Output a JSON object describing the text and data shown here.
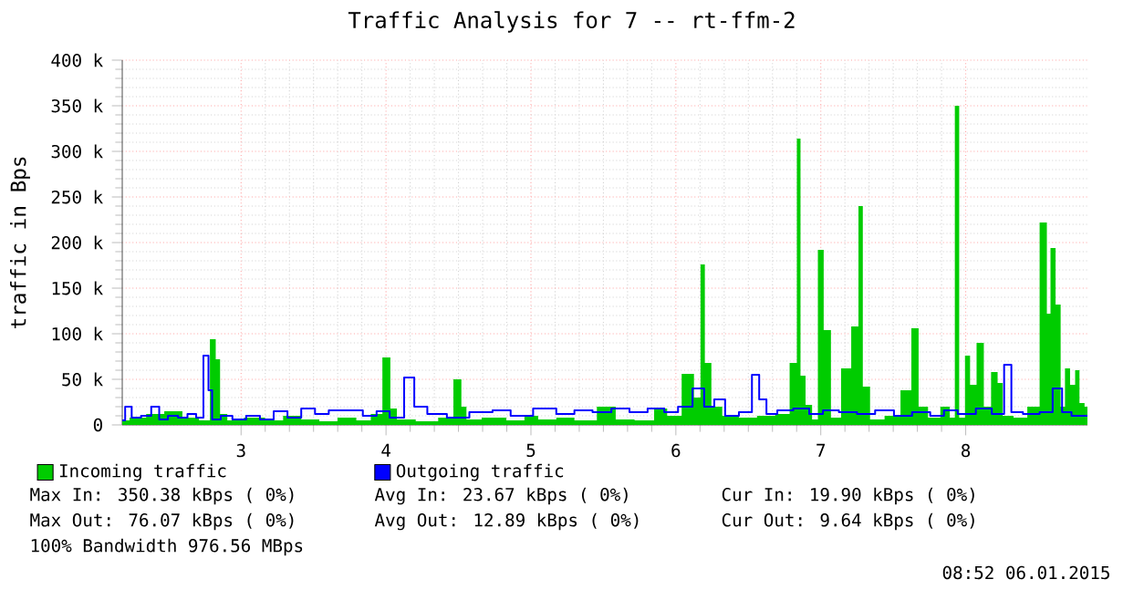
{
  "chart_data": {
    "type": "area",
    "title": "Traffic Analysis for 7 -- rt-ffm-2",
    "ylabel": "traffic in Bps",
    "xlim": [
      2.18,
      8.84
    ],
    "xticks": [
      3,
      4,
      5,
      6,
      7,
      8
    ],
    "ylim": [
      0,
      400000
    ],
    "yticks": [
      0,
      {
        "value": 50000,
        "label": "50 k"
      },
      {
        "value": 100000,
        "label": "100 k"
      },
      {
        "value": 150000,
        "label": "150 k"
      },
      {
        "value": 200000,
        "label": "200 k"
      },
      {
        "value": 250000,
        "label": "250 k"
      },
      {
        "value": 300000,
        "label": "300 k"
      },
      {
        "value": 350000,
        "label": "350 k"
      },
      {
        "value": 400000,
        "label": "400 k"
      }
    ],
    "grid": true,
    "legend": "bottom",
    "series": [
      {
        "name": "Incoming traffic",
        "type": "area",
        "color": "#00cc00",
        "x": [
          2.18,
          2.28,
          2.41,
          2.53,
          2.66,
          2.76,
          2.81,
          2.84,
          2.87,
          2.94,
          3.1,
          3.23,
          3.35,
          3.48,
          3.6,
          3.73,
          3.86,
          3.93,
          4.02,
          4.04,
          4.11,
          4.3,
          4.42,
          4.51,
          4.53,
          4.58,
          4.74,
          4.92,
          4.99,
          5.11,
          5.24,
          5.36,
          5.55,
          5.62,
          5.81,
          5.89,
          5.99,
          6.09,
          6.16,
          6.18,
          6.22,
          6.27,
          6.37,
          6.5,
          6.62,
          6.75,
          6.82,
          6.85,
          6.87,
          6.92,
          6.96,
          7.0,
          7.04,
          7.1,
          7.18,
          7.24,
          7.28,
          7.3,
          7.38,
          7.5,
          7.6,
          7.65,
          7.7,
          7.78,
          7.87,
          7.91,
          7.94,
          7.97,
          8.02,
          8.04,
          8.11,
          8.14,
          8.21,
          8.23,
          8.28,
          8.38,
          8.47,
          8.55,
          8.57,
          8.6,
          8.64,
          8.67,
          8.7,
          8.74,
          8.77,
          8.8,
          8.84
        ],
        "values": [
          5000,
          8000,
          12000,
          15000,
          8000,
          5000,
          94000,
          72000,
          12000,
          5000,
          8000,
          5000,
          10000,
          6000,
          4000,
          8000,
          5000,
          12000,
          74000,
          18000,
          6000,
          4000,
          8000,
          50000,
          20000,
          6000,
          8000,
          5000,
          10000,
          6000,
          8000,
          5000,
          20000,
          6000,
          5000,
          18000,
          10000,
          56000,
          30000,
          176000,
          68000,
          20000,
          10000,
          8000,
          10000,
          12000,
          68000,
          314000,
          54000,
          22000,
          6000,
          192000,
          104000,
          8000,
          62000,
          108000,
          240000,
          42000,
          6000,
          10000,
          38000,
          106000,
          20000,
          8000,
          20000,
          8000,
          350000,
          8000,
          76000,
          44000,
          90000,
          20000,
          58000,
          46000,
          10000,
          8000,
          20000,
          222000,
          122000,
          194000,
          132000,
          20000,
          62000,
          44000,
          60000,
          24000,
          20000
        ]
      },
      {
        "name": "Outgoing traffic",
        "type": "step",
        "color": "#0000ff",
        "x": [
          2.18,
          2.22,
          2.27,
          2.35,
          2.41,
          2.46,
          2.53,
          2.6,
          2.66,
          2.72,
          2.76,
          2.79,
          2.81,
          2.91,
          2.97,
          3.1,
          3.16,
          3.29,
          3.35,
          3.48,
          3.54,
          3.67,
          3.79,
          3.89,
          3.98,
          4.07,
          4.18,
          4.21,
          4.36,
          4.48,
          4.67,
          4.8,
          4.92,
          5.11,
          5.24,
          5.36,
          5.49,
          5.62,
          5.74,
          5.87,
          5.97,
          6.06,
          6.17,
          6.22,
          6.31,
          6.37,
          6.5,
          6.55,
          6.6,
          6.65,
          6.75,
          6.87,
          6.97,
          7.06,
          7.19,
          7.31,
          7.44,
          7.57,
          7.69,
          7.82,
          7.88,
          8.01,
          8.13,
          8.23,
          8.3,
          8.33,
          8.46,
          8.56,
          8.64,
          8.69,
          8.77,
          8.84
        ],
        "values": [
          5000,
          20000,
          8000,
          10000,
          20000,
          6000,
          10000,
          8000,
          12000,
          8000,
          76000,
          38000,
          6000,
          10000,
          6000,
          10000,
          6000,
          15000,
          8000,
          18000,
          12000,
          16000,
          16000,
          10000,
          15000,
          8000,
          52000,
          20000,
          12000,
          8000,
          14000,
          16000,
          10000,
          18000,
          12000,
          16000,
          14000,
          18000,
          14000,
          18000,
          14000,
          20000,
          40000,
          20000,
          28000,
          10000,
          14000,
          55000,
          28000,
          12000,
          16000,
          18000,
          12000,
          16000,
          14000,
          12000,
          16000,
          10000,
          14000,
          10000,
          16000,
          12000,
          18000,
          12000,
          66000,
          14000,
          12000,
          14000,
          40000,
          14000,
          10000,
          10000
        ]
      }
    ],
    "annotations": [
      "Max In: 350.38 kBps ( 0%)",
      "Avg In:  23.67 kBps ( 0%)",
      "Cur In:  19.90 kBps ( 0%)",
      "Max Out: 76.07 kBps ( 0%)",
      "Avg Out: 12.89 kBps ( 0%)",
      "Cur Out:  9.64 kBps ( 0%)",
      "100% Bandwidth 976.56 MBps",
      "08:52 06.01.2015"
    ]
  }
}
